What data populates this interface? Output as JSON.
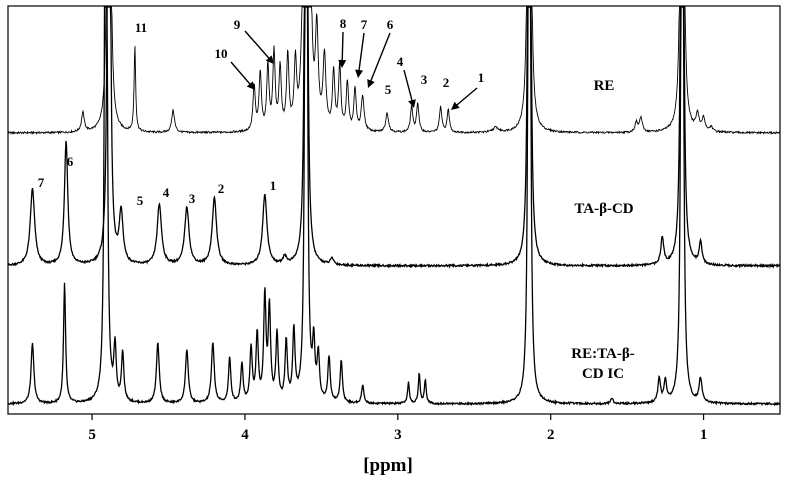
{
  "chart_data": {
    "type": "line",
    "xlabel": "[ppm]",
    "x_reversed": true,
    "xlim": [
      5.55,
      0.5
    ],
    "x_ticks": [
      5,
      4,
      3,
      2,
      1
    ],
    "y_ticks_shown": false,
    "grid": false,
    "frame": "box",
    "series": [
      {
        "name": "RE",
        "baseline": 0.05,
        "peaks": [
          {
            "ppm": 5.06,
            "height": 0.12,
            "width": 0.011
          },
          {
            "ppm": 4.72,
            "height": 0.54,
            "width": 0.006
          },
          {
            "ppm": 4.47,
            "height": 0.14,
            "width": 0.011
          },
          {
            "ppm": 3.94,
            "height": 0.28,
            "width": 0.009
          },
          {
            "ppm": 3.9,
            "height": 0.36,
            "width": 0.009
          },
          {
            "ppm": 3.85,
            "height": 0.4,
            "width": 0.009
          },
          {
            "ppm": 3.81,
            "height": 0.48,
            "width": 0.009
          },
          {
            "ppm": 3.77,
            "height": 0.38,
            "width": 0.009
          },
          {
            "ppm": 3.72,
            "height": 0.46,
            "width": 0.009
          },
          {
            "ppm": 3.67,
            "height": 0.4,
            "width": 0.009
          },
          {
            "ppm": 3.62,
            "height": 0.5,
            "width": 0.011
          },
          {
            "ppm": 3.57,
            "height": 0.68,
            "width": 0.011
          },
          {
            "ppm": 3.53,
            "height": 0.6,
            "width": 0.011
          },
          {
            "ppm": 3.48,
            "height": 0.45,
            "width": 0.011
          },
          {
            "ppm": 3.42,
            "height": 0.36,
            "width": 0.009
          },
          {
            "ppm": 3.38,
            "height": 0.4,
            "width": 0.009
          },
          {
            "ppm": 3.33,
            "height": 0.3,
            "width": 0.009
          },
          {
            "ppm": 3.28,
            "height": 0.26,
            "width": 0.009
          },
          {
            "ppm": 3.23,
            "height": 0.22,
            "width": 0.011
          },
          {
            "ppm": 3.07,
            "height": 0.12,
            "width": 0.011
          },
          {
            "ppm": 2.91,
            "height": 0.16,
            "width": 0.009
          },
          {
            "ppm": 2.87,
            "height": 0.18,
            "width": 0.009
          },
          {
            "ppm": 2.72,
            "height": 0.16,
            "width": 0.009
          },
          {
            "ppm": 2.67,
            "height": 0.14,
            "width": 0.009
          },
          {
            "ppm": 2.36,
            "height": 0.03,
            "width": 0.02
          },
          {
            "ppm": 1.44,
            "height": 0.06,
            "width": 0.011
          },
          {
            "ppm": 1.41,
            "height": 0.09,
            "width": 0.011
          },
          {
            "ppm": 1.04,
            "height": 0.1,
            "width": 0.012
          },
          {
            "ppm": 1.0,
            "height": 0.08,
            "width": 0.012
          },
          {
            "ppm": 0.95,
            "height": 0.03,
            "width": 0.011
          }
        ],
        "truncated_peaks_ppm": [
          4.89,
          3.6,
          2.14,
          1.14
        ]
      },
      {
        "name": "TA-β-CD",
        "baseline": 0.05,
        "peaks": [
          {
            "ppm": 5.39,
            "height": 0.48,
            "width": 0.017
          },
          {
            "ppm": 5.17,
            "height": 0.78,
            "width": 0.013
          },
          {
            "ppm": 4.81,
            "height": 0.32,
            "width": 0.015
          },
          {
            "ppm": 4.56,
            "height": 0.38,
            "width": 0.017
          },
          {
            "ppm": 4.38,
            "height": 0.36,
            "width": 0.017
          },
          {
            "ppm": 4.2,
            "height": 0.42,
            "width": 0.017
          },
          {
            "ppm": 3.87,
            "height": 0.44,
            "width": 0.017
          },
          {
            "ppm": 3.74,
            "height": 0.05,
            "width": 0.013
          },
          {
            "ppm": 3.43,
            "height": 0.04,
            "width": 0.013
          },
          {
            "ppm": 1.27,
            "height": 0.17,
            "width": 0.011
          },
          {
            "ppm": 1.02,
            "height": 0.14,
            "width": 0.011
          }
        ],
        "truncated_peaks_ppm": [
          4.89,
          3.6,
          2.14,
          1.14
        ]
      },
      {
        "name": "RE:TA-β-CD IC",
        "baseline": 0.04,
        "peaks": [
          {
            "ppm": 5.39,
            "height": 0.4,
            "width": 0.011
          },
          {
            "ppm": 5.18,
            "height": 0.8,
            "width": 0.008
          },
          {
            "ppm": 4.85,
            "height": 0.35,
            "width": 0.009
          },
          {
            "ppm": 4.8,
            "height": 0.33,
            "width": 0.009
          },
          {
            "ppm": 4.57,
            "height": 0.4,
            "width": 0.011
          },
          {
            "ppm": 4.38,
            "height": 0.36,
            "width": 0.011
          },
          {
            "ppm": 4.21,
            "height": 0.4,
            "width": 0.011
          },
          {
            "ppm": 4.1,
            "height": 0.3,
            "width": 0.009
          },
          {
            "ppm": 4.02,
            "height": 0.26,
            "width": 0.009
          },
          {
            "ppm": 3.96,
            "height": 0.36,
            "width": 0.009
          },
          {
            "ppm": 3.92,
            "height": 0.45,
            "width": 0.009
          },
          {
            "ppm": 3.87,
            "height": 0.7,
            "width": 0.009
          },
          {
            "ppm": 3.84,
            "height": 0.62,
            "width": 0.009
          },
          {
            "ppm": 3.79,
            "height": 0.45,
            "width": 0.009
          },
          {
            "ppm": 3.73,
            "height": 0.4,
            "width": 0.009
          },
          {
            "ppm": 3.68,
            "height": 0.46,
            "width": 0.009
          },
          {
            "ppm": 3.55,
            "height": 0.36,
            "width": 0.009
          },
          {
            "ppm": 3.52,
            "height": 0.3,
            "width": 0.009
          },
          {
            "ppm": 3.45,
            "height": 0.3,
            "width": 0.009
          },
          {
            "ppm": 3.37,
            "height": 0.28,
            "width": 0.009
          },
          {
            "ppm": 3.23,
            "height": 0.12,
            "width": 0.009
          },
          {
            "ppm": 2.93,
            "height": 0.14,
            "width": 0.007
          },
          {
            "ppm": 2.86,
            "height": 0.2,
            "width": 0.007
          },
          {
            "ppm": 2.82,
            "height": 0.16,
            "width": 0.007
          },
          {
            "ppm": 1.6,
            "height": 0.04,
            "width": 0.009
          },
          {
            "ppm": 1.29,
            "height": 0.16,
            "width": 0.01
          },
          {
            "ppm": 1.25,
            "height": 0.14,
            "width": 0.01
          },
          {
            "ppm": 1.02,
            "height": 0.16,
            "width": 0.011
          }
        ],
        "truncated_peaks_ppm": [
          4.91,
          3.6,
          2.14,
          1.14
        ]
      }
    ],
    "spectrum_labels": [
      "RE",
      "TA-β-CD",
      "RE:TA-β-\nCD IC"
    ],
    "peak_annotations": {
      "RE": [
        {
          "label": "11",
          "ppm": 4.72,
          "arrow": false
        },
        {
          "label": "10",
          "ppm": 3.94,
          "arrow": true
        },
        {
          "label": "9",
          "ppm": 3.81,
          "arrow": true
        },
        {
          "label": "8",
          "ppm": 3.39,
          "arrow": true
        },
        {
          "label": "7",
          "ppm": 3.3,
          "arrow": true
        },
        {
          "label": "6",
          "ppm": 3.24,
          "arrow": true
        },
        {
          "label": "5",
          "ppm": 3.07,
          "arrow": false
        },
        {
          "label": "4",
          "ppm": 2.91,
          "arrow": true
        },
        {
          "label": "3",
          "ppm": 2.84,
          "arrow": false
        },
        {
          "label": "2",
          "ppm": 2.7,
          "arrow": false
        },
        {
          "label": "1",
          "ppm": 2.67,
          "arrow": true
        }
      ],
      "TA-β-CD": [
        {
          "label": "7",
          "ppm": 5.39,
          "arrow": false
        },
        {
          "label": "6",
          "ppm": 5.17,
          "arrow": false
        },
        {
          "label": "5",
          "ppm": 4.83,
          "arrow": false
        },
        {
          "label": "4",
          "ppm": 4.57,
          "arrow": false
        },
        {
          "label": "3",
          "ppm": 4.38,
          "arrow": false
        },
        {
          "label": "2",
          "ppm": 4.2,
          "arrow": false
        },
        {
          "label": "1",
          "ppm": 3.87,
          "arrow": false
        }
      ]
    }
  }
}
